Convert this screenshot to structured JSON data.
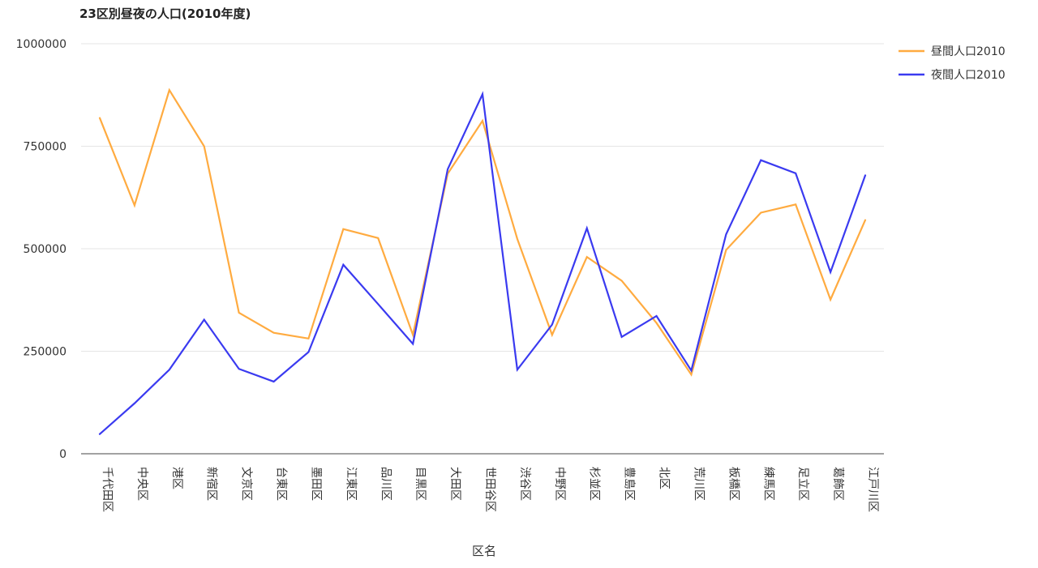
{
  "chart_data": {
    "type": "line",
    "title": "23区別昼夜の人口(2010年度)",
    "xlabel": "区名",
    "ylabel": "",
    "ylim": [
      0,
      1000000
    ],
    "yticks": [
      "0",
      "250000",
      "500000",
      "750000",
      "1000000"
    ],
    "yticks_values": [
      0,
      250000,
      500000,
      750000,
      1000000
    ],
    "grid": true,
    "legend_position": "right",
    "categories": [
      "千代田区",
      "中央区",
      "港区",
      "新宿区",
      "文京区",
      "台東区",
      "墨田区",
      "江東区",
      "品川区",
      "目黒区",
      "大田区",
      "世田谷区",
      "渋谷区",
      "中野区",
      "杉並区",
      "豊島区",
      "北区",
      "荒川区",
      "板橋区",
      "練馬区",
      "足立区",
      "葛飾区",
      "江戸川区"
    ],
    "series": [
      {
        "name": "昼間人口2010",
        "color": "#ffab40",
        "values": [
          819000,
          606000,
          887000,
          750000,
          344000,
          295000,
          281000,
          548000,
          526000,
          290000,
          683000,
          812000,
          524000,
          290000,
          480000,
          422000,
          319000,
          193000,
          497000,
          588000,
          608000,
          376000,
          570000
        ]
      },
      {
        "name": "夜間人口2010",
        "color": "#3a3af0",
        "values": [
          48000,
          123000,
          205000,
          327000,
          207000,
          176000,
          248000,
          461000,
          365000,
          268000,
          694000,
          877000,
          205000,
          315000,
          550000,
          285000,
          336000,
          203000,
          535000,
          716000,
          684000,
          443000,
          679000
        ]
      }
    ]
  }
}
